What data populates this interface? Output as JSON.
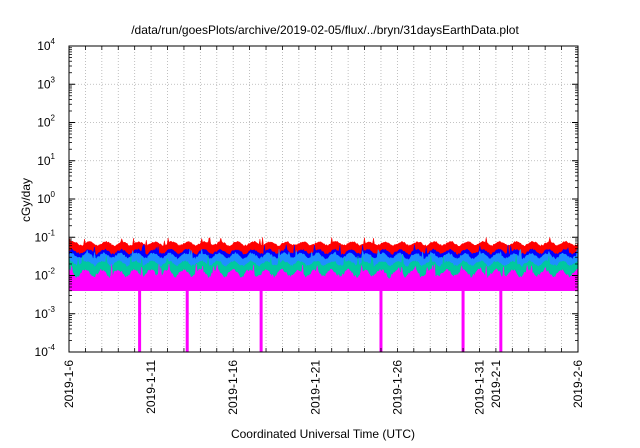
{
  "chart_data": {
    "type": "area",
    "title": "/data/run/goesPlots/archive/2019-02-05/flux/../bryn/31daysEarthData.plot",
    "xlabel": "Coordinated Universal Time (UTC)",
    "ylabel": "cGy/day",
    "yscale": "log",
    "ylim": [
      0.0001,
      10000
    ],
    "xlim": [
      "2019-01-06",
      "2019-02-06"
    ],
    "x_ticks": [
      "2019-1-6",
      "2019-1-11",
      "2019-1-16",
      "2019-1-21",
      "2019-1-26",
      "2019-1-31",
      "2019-2-1",
      "2019-2-6"
    ],
    "x_tick_days": [
      0,
      5,
      10,
      15,
      20,
      25,
      26,
      31
    ],
    "y_ticks": [
      {
        "base": "10",
        "exp": "-4",
        "value": 0.0001
      },
      {
        "base": "10",
        "exp": "-3",
        "value": 0.001
      },
      {
        "base": "10",
        "exp": "-2",
        "value": 0.01
      },
      {
        "base": "10",
        "exp": "-1",
        "value": 0.1
      },
      {
        "base": "10",
        "exp": "0",
        "value": 1
      },
      {
        "base": "10",
        "exp": "1",
        "value": 10
      },
      {
        "base": "10",
        "exp": "2",
        "value": 100
      },
      {
        "base": "10",
        "exp": "3",
        "value": 1000
      },
      {
        "base": "10",
        "exp": "4",
        "value": 10000
      }
    ],
    "grid": true,
    "series": [
      {
        "color": "#ff0000",
        "typical_low": 0.045,
        "typical_high": 0.08,
        "max": 0.1
      },
      {
        "color": "#0000ff",
        "typical_low": 0.025,
        "typical_high": 0.05,
        "max": 0.065
      },
      {
        "color": "#1e90ff",
        "typical_low": 0.018,
        "typical_high": 0.04,
        "max": 0.05
      },
      {
        "color": "#00c8a0",
        "typical_low": 0.012,
        "typical_high": 0.025,
        "max": 0.035
      },
      {
        "color": "#ff00ff",
        "typical_low": 0.0045,
        "typical_high": 0.015,
        "max": 0.02
      }
    ],
    "dropouts": [
      {
        "day": 4.3,
        "min": 0.0001
      },
      {
        "day": 7.2,
        "min": 0.0001
      },
      {
        "day": 11.7,
        "min": 0.0001
      },
      {
        "day": 19.0,
        "min": 0.0001
      },
      {
        "day": 24.0,
        "min": 0.0001
      },
      {
        "day": 26.3,
        "min": 0.0001
      }
    ]
  }
}
